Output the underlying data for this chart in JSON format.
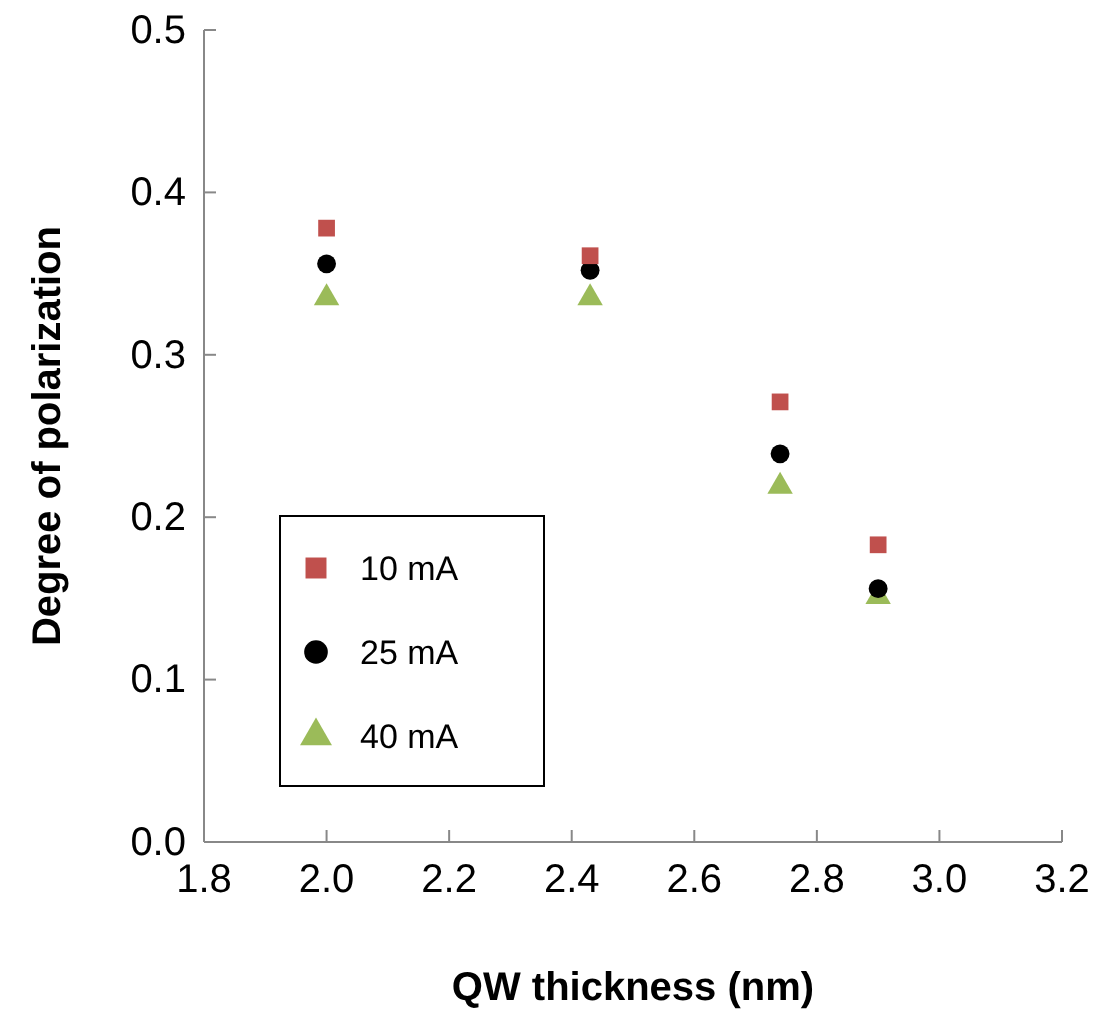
{
  "chart_data": {
    "type": "scatter",
    "xlabel": "QW thickness (nm)",
    "ylabel": "Degree of polarization",
    "x": [
      2.0,
      2.43,
      2.74,
      2.9
    ],
    "series": [
      {
        "name": "10 mA",
        "color": "#c0504d",
        "marker": "square",
        "values": [
          0.378,
          0.361,
          0.271,
          0.183
        ]
      },
      {
        "name": "25 mA",
        "color": "#000000",
        "marker": "circle",
        "values": [
          0.356,
          0.352,
          0.239,
          0.156
        ]
      },
      {
        "name": "40 mA",
        "color": "#9bbb59",
        "marker": "triangle",
        "values": [
          0.335,
          0.335,
          0.219,
          0.151
        ]
      }
    ],
    "xlim": [
      1.8,
      3.2
    ],
    "xticks": [
      {
        "value": 1.8,
        "label": "1.8"
      },
      {
        "value": 2.0,
        "label": "2.0"
      },
      {
        "value": 2.2,
        "label": "2.2"
      },
      {
        "value": 2.4,
        "label": "2.4"
      },
      {
        "value": 2.6,
        "label": "2.6"
      },
      {
        "value": 2.8,
        "label": "2.8"
      },
      {
        "value": 3.0,
        "label": "3.0"
      },
      {
        "value": 3.2,
        "label": "3.2"
      }
    ],
    "ylim": [
      0,
      0.5
    ],
    "yticks": [
      {
        "value": 0,
        "label": "0.0"
      },
      {
        "value": 0.1,
        "label": "0.1"
      },
      {
        "value": 0.2,
        "label": "0.2"
      },
      {
        "value": 0.3,
        "label": "0.3"
      },
      {
        "value": 0.4,
        "label": "0.4"
      },
      {
        "value": 0.5,
        "label": "0.5"
      }
    ],
    "grid": false,
    "legend": "bottom left"
  }
}
